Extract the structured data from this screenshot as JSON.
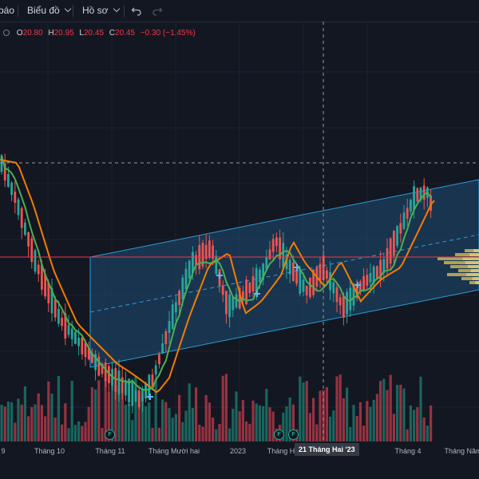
{
  "toolbar": {
    "cut_label": "báo",
    "chart_type_label": "Biểu đồ",
    "profile_label": "Hồ sơ"
  },
  "legend": {
    "o_key": "O",
    "o_val": "20.80",
    "h_key": "H",
    "h_val": "20.95",
    "l_key": "L",
    "l_val": "20.45",
    "c_key": "C",
    "c_val": "20.45",
    "change": "−0.30 (−1.45%)"
  },
  "timeaxis": {
    "labels": [
      {
        "text": "9",
        "x": 4
      },
      {
        "text": "Tháng 10",
        "x": 62
      },
      {
        "text": "Tháng 11",
        "x": 138
      },
      {
        "text": "Tháng Mười hai",
        "x": 218
      },
      {
        "text": "2023",
        "x": 298
      },
      {
        "text": "Tháng H",
        "x": 352
      },
      {
        "text": "Tháng 4",
        "x": 511
      },
      {
        "text": "Tháng Năm",
        "x": 580
      }
    ],
    "crosshair_label": "21 Tháng Hai '23"
  },
  "events": {
    "badge_label": "F"
  },
  "colors": {
    "background": "#131722",
    "up": "#26a69a",
    "down": "#ef5350",
    "ma_fast": "#4caf50",
    "ma_slow": "#f57c00",
    "channel": "#2a5d8a",
    "price_line": "#f23645"
  },
  "icons": [
    "chevron-down-icon",
    "undo-icon",
    "redo-icon",
    "collapse-icon",
    "earnings-icon"
  ],
  "chart_data": {
    "type": "candlestick",
    "last_open": 20.8,
    "last_high": 20.95,
    "last_low": 20.45,
    "last_close": 20.45,
    "change": -0.3,
    "change_pct": -1.45,
    "overlays": [
      "fast moving average (green)",
      "slow moving average (orange)",
      "parallel channel",
      "volume profile"
    ],
    "price_axis_visible": false
  }
}
